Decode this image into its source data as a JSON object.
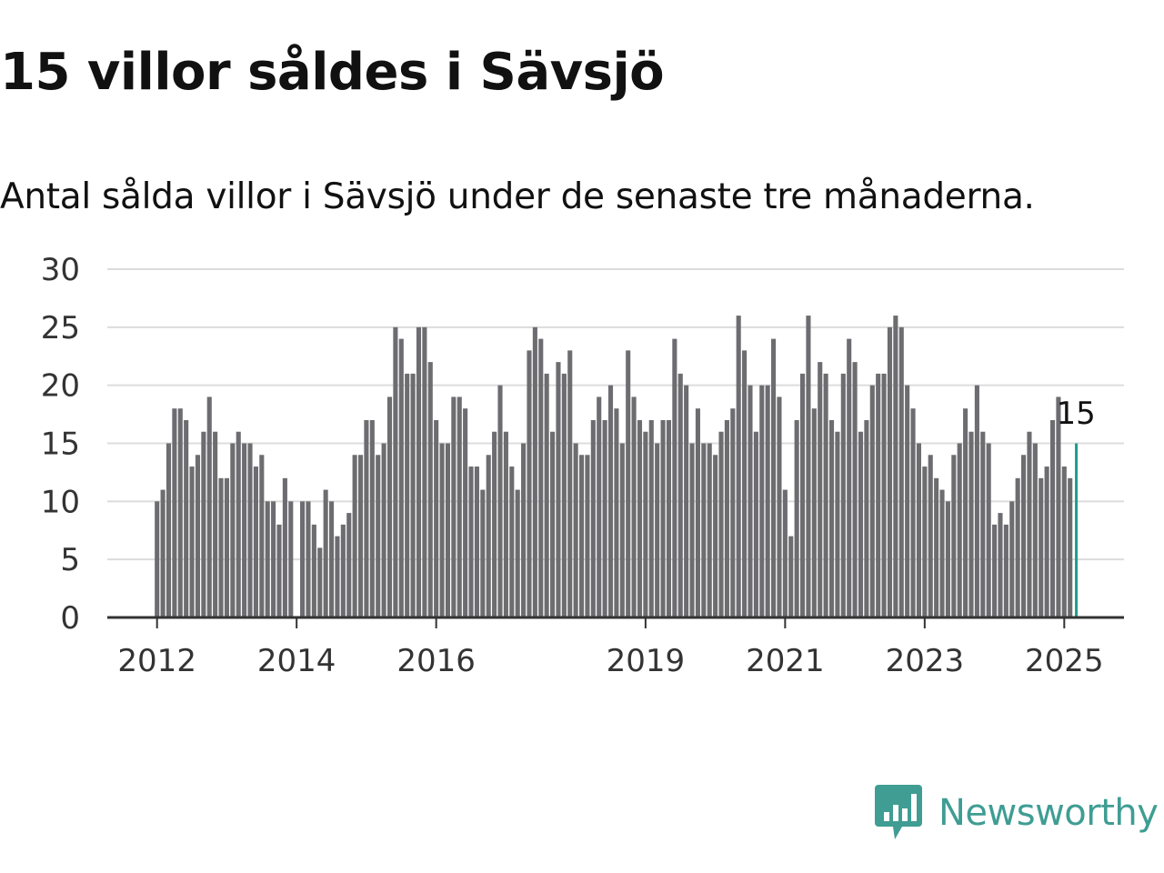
{
  "header": {
    "title": "15 villor såldes i Sävsjö",
    "subtitle": "Antal sålda villor i Sävsjö under de senaste tre månaderna."
  },
  "branding": {
    "logo_text": "Newsworthy",
    "logo_icon": "newsworthy-bar-chart-icon",
    "color": "#3f9d93"
  },
  "chart_data": {
    "type": "bar",
    "x_start": "2012-01",
    "x_tick_labels": [
      "2012",
      "2014",
      "2016",
      "2019",
      "2021",
      "2023",
      "2025"
    ],
    "y_tick_labels": [
      "0",
      "5",
      "10",
      "15",
      "20",
      "25",
      "30"
    ],
    "ylim": [
      0,
      30
    ],
    "grid": true,
    "bar_color": "#6d6c70",
    "highlight_color": "#1b9e8e",
    "highlight_label": "15",
    "values": [
      10,
      11,
      15,
      18,
      18,
      17,
      13,
      14,
      16,
      19,
      16,
      12,
      12,
      15,
      16,
      15,
      15,
      13,
      14,
      10,
      10,
      8,
      12,
      10,
      0,
      10,
      10,
      8,
      6,
      11,
      10,
      7,
      8,
      9,
      14,
      14,
      17,
      17,
      14,
      15,
      19,
      25,
      24,
      21,
      21,
      25,
      25,
      22,
      17,
      15,
      15,
      19,
      19,
      18,
      13,
      13,
      11,
      14,
      16,
      20,
      16,
      13,
      11,
      15,
      23,
      25,
      24,
      21,
      16,
      22,
      21,
      23,
      15,
      14,
      14,
      17,
      19,
      17,
      20,
      18,
      15,
      23,
      19,
      17,
      16,
      17,
      15,
      17,
      17,
      24,
      21,
      20,
      15,
      18,
      15,
      15,
      14,
      16,
      17,
      18,
      26,
      23,
      20,
      16,
      20,
      20,
      24,
      19,
      11,
      7,
      17,
      21,
      26,
      18,
      22,
      21,
      17,
      16,
      21,
      24,
      22,
      16,
      17,
      20,
      21,
      21,
      25,
      26,
      25,
      20,
      18,
      15,
      13,
      14,
      12,
      11,
      10,
      14,
      15,
      18,
      16,
      20,
      16,
      15,
      8,
      9,
      8,
      10,
      12,
      14,
      16,
      15,
      12,
      13,
      17,
      19,
      13,
      12,
      15
    ]
  }
}
